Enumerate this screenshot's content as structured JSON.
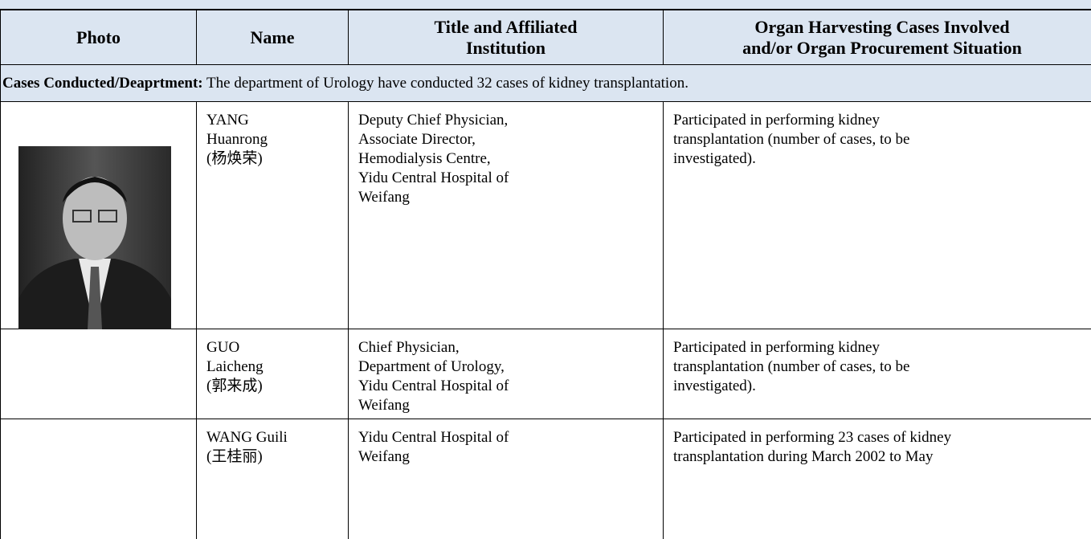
{
  "table": {
    "header": [
      [
        "Photo"
      ],
      [
        "Name"
      ],
      [
        "Title and Affiliated",
        "Institution"
      ],
      [
        "Organ Harvesting Cases Involved",
        "and/or Organ Procurement Situation"
      ]
    ],
    "section": {
      "label": "Cases Conducted/Deaprtment:",
      "text": "The department of Urology have conducted 32 cases of kidney transplantation."
    },
    "rows": [
      {
        "name": [
          "YANG",
          "Huanrong",
          "(杨焕荣)"
        ],
        "title": [
          "Deputy Chief Physician,",
          "Associate Director,",
          "Hemodialysis Centre,",
          "Yidu Central Hospital of",
          "Weifang"
        ],
        "cases": [
          "Participated in performing kidney",
          "transplantation (number of cases, to be",
          "investigated)."
        ]
      },
      {
        "name": [
          "GUO",
          "Laicheng",
          "(郭来成)"
        ],
        "title": [
          "Chief Physician,",
          "Department of Urology,",
          "Yidu Central Hospital of",
          "Weifang"
        ],
        "cases": [
          "Participated in performing kidney",
          "transplantation (number of cases, to be",
          "investigated)."
        ]
      },
      {
        "name": [
          "WANG Guili",
          "(王桂丽)"
        ],
        "title": [
          "Yidu Central Hospital of",
          "Weifang"
        ],
        "cases": [
          "Participated in performing 23 cases of kidney",
          "transplantation during March 2002 to May"
        ]
      }
    ]
  }
}
